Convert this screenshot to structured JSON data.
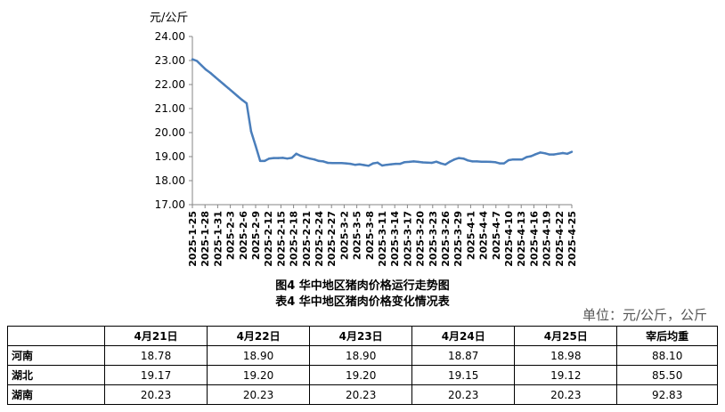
{
  "chart_data": {
    "type": "line",
    "unit_label": "元/公斤",
    "ylim": [
      17.0,
      24.0
    ],
    "yticks": [
      "24.00",
      "23.00",
      "22.00",
      "21.00",
      "20.00",
      "19.00",
      "18.00",
      "17.00"
    ],
    "xtick_labels": [
      "2025-1-25",
      "2025-1-28",
      "2025-1-31",
      "2025-2-3",
      "2025-2-6",
      "2025-2-9",
      "2025-2-12",
      "2025-2-15",
      "2025-2-18",
      "2025-2-21",
      "2025-2-24",
      "2025-2-27",
      "2025-3-2",
      "2025-3-5",
      "2025-3-8",
      "2025-3-11",
      "2025-3-14",
      "2025-3-17",
      "2025-3-20",
      "2025-3-23",
      "2025-3-26",
      "2025-3-29",
      "2025-4-1",
      "2025-4-4",
      "2025-4-7",
      "2025-4-10",
      "2025-4-13",
      "2025-4-16",
      "2025-4-19",
      "2025-4-22",
      "2025-4-25"
    ],
    "line_color": "#4a7ebb",
    "values": [
      23.05,
      22.98,
      22.8,
      22.62,
      22.48,
      22.32,
      22.16,
      22.0,
      21.84,
      21.68,
      21.52,
      21.36,
      21.22,
      20.05,
      19.45,
      18.82,
      18.82,
      18.92,
      18.94,
      18.94,
      18.95,
      18.92,
      18.95,
      19.12,
      19.03,
      18.97,
      18.92,
      18.88,
      18.82,
      18.8,
      18.74,
      18.73,
      18.73,
      18.73,
      18.72,
      18.7,
      18.66,
      18.68,
      18.65,
      18.62,
      18.72,
      18.75,
      18.63,
      18.66,
      18.68,
      18.7,
      18.7,
      18.77,
      18.78,
      18.8,
      18.78,
      18.76,
      18.75,
      18.74,
      18.79,
      18.72,
      18.67,
      18.79,
      18.88,
      18.94,
      18.92,
      18.84,
      18.8,
      18.8,
      18.79,
      18.79,
      18.78,
      18.77,
      18.72,
      18.72,
      18.85,
      18.88,
      18.88,
      18.88,
      18.98,
      19.02,
      19.1,
      19.17,
      19.14,
      19.09,
      19.09,
      19.12,
      19.15,
      19.12,
      19.2
    ]
  },
  "captions": {
    "figure": "图4 华中地区猪肉价格运行走势图",
    "table": "表4 华中地区猪肉价格变化情况表",
    "unit": "单位：元/公斤，公斤"
  },
  "table": {
    "headers": [
      "4月21日",
      "4月22日",
      "4月23日",
      "4月24日",
      "4月25日",
      "宰后均重"
    ],
    "rows": [
      {
        "region": "河南",
        "values": [
          "18.78",
          "18.90",
          "18.90",
          "18.87",
          "18.98",
          "88.10"
        ]
      },
      {
        "region": "湖北",
        "values": [
          "19.17",
          "19.20",
          "19.20",
          "19.15",
          "19.12",
          "85.50"
        ]
      },
      {
        "region": "湖南",
        "values": [
          "20.23",
          "20.23",
          "20.23",
          "20.23",
          "20.23",
          "92.83"
        ]
      }
    ]
  }
}
